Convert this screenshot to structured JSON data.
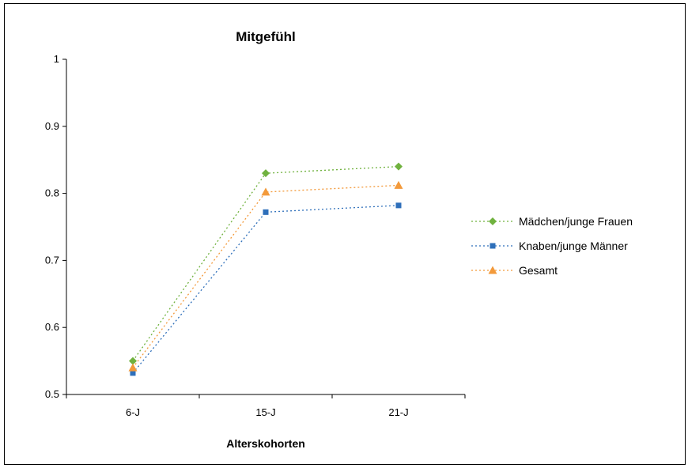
{
  "chart_data": {
    "type": "line",
    "title": "Mitgefühl",
    "xlabel": "Alterskohorten",
    "ylabel": "",
    "categories": [
      "6-J",
      "15-J",
      "21-J"
    ],
    "ylim": [
      0.5,
      1
    ],
    "yticks": [
      "0.5",
      "0.6",
      "0.7",
      "0.8",
      "0.9",
      "1"
    ],
    "grid": false,
    "legend_position": "right",
    "series": [
      {
        "name": "Mädchen/junge Frauen",
        "values": [
          0.55,
          0.83,
          0.84
        ],
        "color": "#70b23f",
        "marker": "diamond"
      },
      {
        "name": "Knaben/junge Männer",
        "values": [
          0.532,
          0.772,
          0.782
        ],
        "color": "#2e6fba",
        "marker": "square"
      },
      {
        "name": "Gesamt",
        "values": [
          0.54,
          0.802,
          0.812
        ],
        "color": "#f39a3b",
        "marker": "triangle"
      }
    ]
  }
}
